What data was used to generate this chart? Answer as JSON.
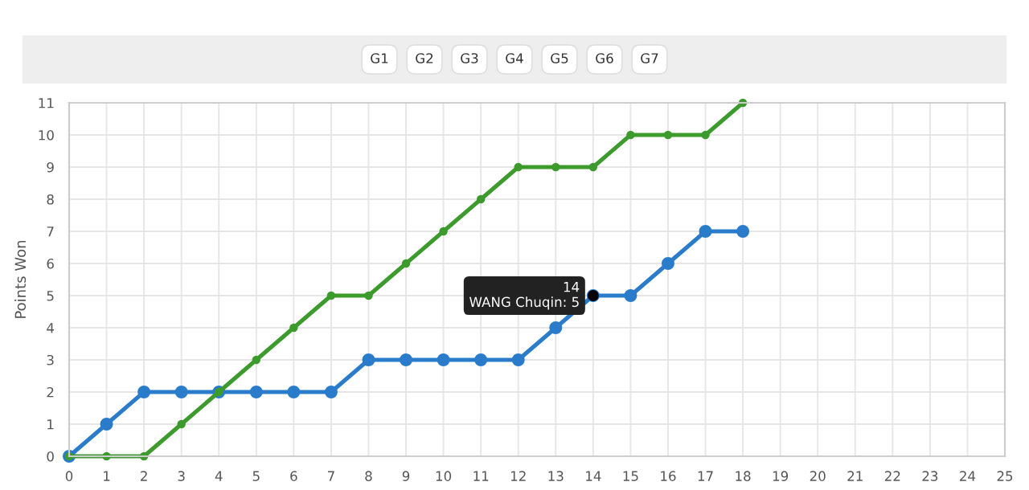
{
  "chart_data": {
    "type": "line",
    "ylabel": "Points Won",
    "x": [
      0,
      1,
      2,
      3,
      4,
      5,
      6,
      7,
      8,
      9,
      10,
      11,
      12,
      13,
      14,
      15,
      16,
      17,
      18
    ],
    "series": [
      {
        "color": "#2a7ccb",
        "values": [
          0,
          1,
          2,
          2,
          2,
          2,
          2,
          2,
          3,
          3,
          3,
          3,
          3,
          4,
          5,
          5,
          6,
          7,
          7
        ]
      },
      {
        "color": "#3d9a2d",
        "values": [
          0,
          0,
          0,
          1,
          2,
          3,
          4,
          5,
          5,
          6,
          7,
          8,
          9,
          9,
          9,
          10,
          10,
          10,
          11
        ]
      }
    ],
    "xlim": [
      0,
      25
    ],
    "xticks": [
      0,
      1,
      2,
      3,
      4,
      5,
      6,
      7,
      8,
      9,
      10,
      11,
      12,
      13,
      14,
      15,
      16,
      17,
      18,
      19,
      20,
      21,
      22,
      23,
      24,
      25
    ],
    "ylim": [
      0,
      11
    ],
    "yticks": [
      0,
      1,
      2,
      3,
      4,
      5,
      6,
      7,
      8,
      9,
      10,
      11
    ],
    "grid": true,
    "marker": "circle",
    "line_style": "solid",
    "annotations": [
      "G1",
      "G2",
      "G3",
      "G4",
      "G5",
      "G6",
      "G7",
      {
        "text": "14\nWANG Chuqin: 5",
        "x": 14,
        "y": 5
      }
    ]
  }
}
